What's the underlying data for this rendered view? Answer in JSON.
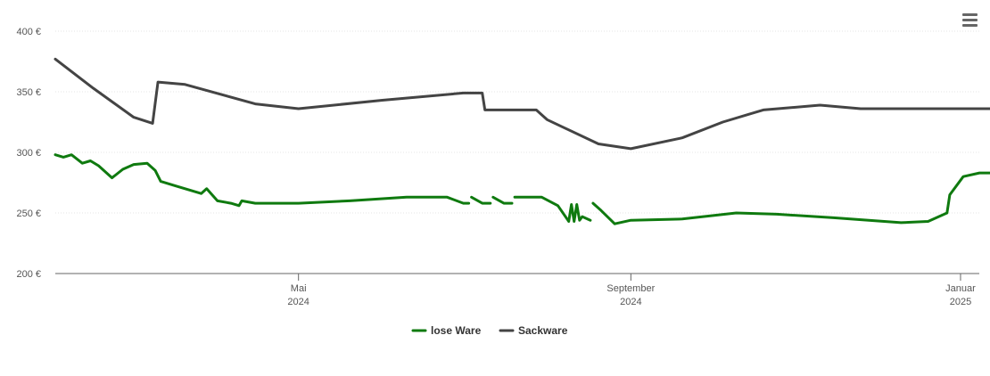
{
  "chart_data": {
    "type": "line",
    "title": "",
    "xlabel": "",
    "ylabel": "",
    "ylim": [
      200,
      400
    ],
    "y_ticks": [
      "200 €",
      "250 €",
      "300 €",
      "350 €",
      "400 €"
    ],
    "x_ticks": [
      {
        "month": "Mai",
        "year": "2024",
        "date": "2024-05-01"
      },
      {
        "month": "September",
        "year": "2024",
        "date": "2024-09-01"
      },
      {
        "month": "Januar",
        "year": "2025",
        "date": "2025-01-01"
      }
    ],
    "xlim": [
      "2024-02-01",
      "2025-01-02"
    ],
    "grid": true,
    "legend_position": "bottom-center",
    "colors": {
      "lose Ware": "#0f7a0f",
      "Sackware": "#444444"
    },
    "series": [
      {
        "name": "lose Ware",
        "points": [
          [
            "2024-02-01",
            298
          ],
          [
            "2024-02-04",
            296
          ],
          [
            "2024-02-07",
            298
          ],
          [
            "2024-02-11",
            291
          ],
          [
            "2024-02-14",
            293
          ],
          [
            "2024-02-17",
            289
          ],
          [
            "2024-02-22",
            279
          ],
          [
            "2024-02-26",
            286
          ],
          [
            "2024-03-01",
            290
          ],
          [
            "2024-03-06",
            291
          ],
          [
            "2024-03-09",
            285
          ],
          [
            "2024-03-11",
            276
          ],
          [
            "2024-03-17",
            272
          ],
          [
            "2024-03-26",
            266
          ],
          [
            "2024-03-28",
            270
          ],
          [
            "2024-04-01",
            260
          ],
          [
            "2024-04-06",
            258
          ],
          [
            "2024-04-09",
            256
          ],
          [
            "2024-04-10",
            260
          ],
          [
            "2024-04-15",
            258
          ],
          [
            "2024-05-01",
            258
          ],
          [
            "2024-05-20",
            260
          ],
          [
            "2024-06-10",
            263
          ],
          [
            "2024-06-25",
            263
          ],
          [
            "2024-07-01",
            258
          ],
          [
            "2024-07-03",
            258
          ],
          null,
          [
            "2024-07-04",
            263
          ],
          [
            "2024-07-08",
            258
          ],
          [
            "2024-07-11",
            258
          ],
          null,
          [
            "2024-07-12",
            263
          ],
          [
            "2024-07-16",
            258
          ],
          [
            "2024-07-19",
            258
          ],
          null,
          [
            "2024-07-20",
            263
          ],
          [
            "2024-07-30",
            263
          ],
          [
            "2024-08-05",
            256
          ],
          [
            "2024-08-09",
            243
          ],
          [
            "2024-08-10",
            257
          ],
          [
            "2024-08-11",
            243
          ],
          [
            "2024-08-12",
            257
          ],
          [
            "2024-08-13",
            244
          ],
          [
            "2024-08-14",
            247
          ],
          [
            "2024-08-17",
            244
          ],
          null,
          [
            "2024-08-18",
            258
          ],
          [
            "2024-08-21",
            252
          ],
          [
            "2024-08-26",
            241
          ],
          [
            "2024-09-01",
            244
          ],
          [
            "2024-09-20",
            245
          ],
          [
            "2024-10-10",
            250
          ],
          [
            "2024-10-25",
            249
          ],
          [
            "2024-11-15",
            246
          ],
          [
            "2024-12-10",
            242
          ],
          [
            "2024-12-20",
            243
          ],
          [
            "2024-12-27",
            250
          ],
          [
            "2024-12-28",
            265
          ],
          [
            "2025-01-02",
            280
          ],
          [
            "2025-01-08",
            283
          ],
          [
            "2025-01-14",
            283
          ],
          [
            "2025-01-15",
            290
          ]
        ]
      },
      {
        "name": "Sackware",
        "points": [
          [
            "2024-02-01",
            377
          ],
          [
            "2024-02-15",
            353
          ],
          [
            "2024-03-01",
            329
          ],
          [
            "2024-03-08",
            324
          ],
          [
            "2024-03-10",
            358
          ],
          [
            "2024-03-20",
            356
          ],
          [
            "2024-04-15",
            340
          ],
          [
            "2024-05-01",
            336
          ],
          [
            "2024-06-01",
            343
          ],
          [
            "2024-07-01",
            349
          ],
          [
            "2024-07-08",
            349
          ],
          [
            "2024-07-09",
            335
          ],
          [
            "2024-07-28",
            335
          ],
          [
            "2024-08-01",
            327
          ],
          [
            "2024-08-20",
            307
          ],
          [
            "2024-09-01",
            303
          ],
          [
            "2024-09-20",
            312
          ],
          [
            "2024-10-05",
            325
          ],
          [
            "2024-10-20",
            335
          ],
          [
            "2024-11-10",
            339
          ],
          [
            "2024-11-25",
            336
          ],
          [
            "2024-12-15",
            336
          ],
          [
            "2025-01-15",
            336
          ]
        ]
      }
    ]
  }
}
